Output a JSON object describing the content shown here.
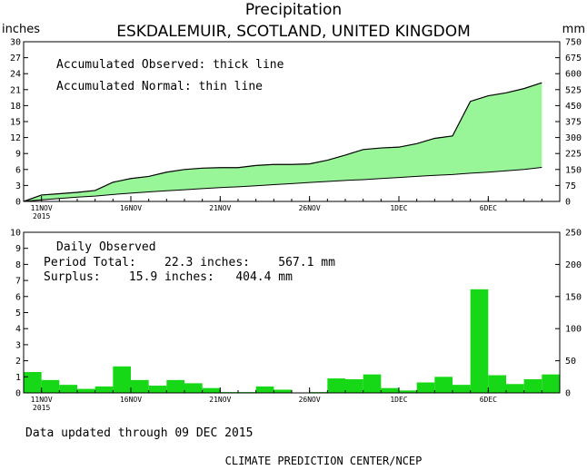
{
  "title": "Precipitation",
  "subtitle": "ESKDALEMUIR, SCOTLAND, UNITED KINGDOM",
  "units": {
    "left": "inches",
    "right": "mm"
  },
  "colors": {
    "fill": "#98f698",
    "bars": "#16d816",
    "line": "#000000"
  },
  "top_panel": {
    "legend_observed": "Accumulated Observed: thick line",
    "legend_normal": "Accumulated Normal: thin line"
  },
  "bottom_panel": {
    "label": "Daily Observed",
    "period_total": "Period Total:    22.3 inches:    567.1 mm",
    "surplus": "Surplus:    15.9 inches:   404.4 mm"
  },
  "x_ticks": [
    {
      "day": 1,
      "label": "11NOV",
      "sub": "2015"
    },
    {
      "day": 6,
      "label": "16NOV",
      "sub": ""
    },
    {
      "day": 11,
      "label": "21NOV",
      "sub": ""
    },
    {
      "day": 16,
      "label": "26NOV",
      "sub": ""
    },
    {
      "day": 21,
      "label": "1DEC",
      "sub": ""
    },
    {
      "day": 26,
      "label": "6DEC",
      "sub": ""
    }
  ],
  "footer": {
    "updated": "Data updated through 09 DEC 2015",
    "credit": "CLIMATE PREDICTION CENTER/NCEP"
  },
  "chart_data": [
    {
      "type": "area",
      "title": "Precipitation",
      "subtitle": "ESKDALEMUIR, SCOTLAND, UNITED KINGDOM",
      "ylabel": "inches",
      "y2label": "mm",
      "ylim": [
        0,
        30
      ],
      "yticks": [
        0,
        3,
        6,
        9,
        12,
        15,
        18,
        21,
        24,
        27,
        30
      ],
      "y2lim": [
        0,
        750
      ],
      "y2ticks": [
        0,
        75,
        150,
        225,
        300,
        375,
        450,
        525,
        600,
        675,
        750
      ],
      "x_days": [
        0,
        1,
        2,
        3,
        4,
        5,
        6,
        7,
        8,
        9,
        10,
        11,
        12,
        13,
        14,
        15,
        16,
        17,
        18,
        19,
        20,
        21,
        22,
        23,
        24,
        25,
        26,
        27,
        28,
        29
      ],
      "series": [
        {
          "name": "Accumulated Observed",
          "values": [
            0.0,
            1.2,
            1.45,
            1.7,
            2.05,
            3.6,
            4.3,
            4.7,
            5.5,
            6.0,
            6.25,
            6.35,
            6.35,
            6.75,
            6.95,
            6.95,
            7.05,
            7.75,
            8.7,
            9.75,
            10.05,
            10.2,
            10.85,
            11.85,
            12.3,
            18.8,
            19.85,
            20.4,
            21.2,
            22.3
          ]
        },
        {
          "name": "Accumulated Normal",
          "values": [
            0.0,
            0.3,
            0.55,
            0.8,
            1.0,
            1.3,
            1.55,
            1.8,
            2.0,
            2.2,
            2.4,
            2.6,
            2.75,
            2.95,
            3.15,
            3.35,
            3.55,
            3.75,
            3.95,
            4.1,
            4.3,
            4.5,
            4.7,
            4.9,
            5.05,
            5.3,
            5.5,
            5.75,
            6.0,
            6.4
          ]
        }
      ]
    },
    {
      "type": "bar",
      "title": "Daily Observed",
      "ylim": [
        0,
        10
      ],
      "yticks": [
        0,
        1,
        2,
        3,
        4,
        5,
        6,
        7,
        8,
        9,
        10
      ],
      "y2lim": [
        0,
        250
      ],
      "y2ticks": [
        0,
        50,
        100,
        150,
        200,
        250
      ],
      "x_days": [
        1,
        2,
        3,
        4,
        5,
        6,
        7,
        8,
        9,
        10,
        11,
        12,
        13,
        14,
        15,
        16,
        17,
        18,
        19,
        20,
        21,
        22,
        23,
        24,
        25,
        26,
        27,
        28,
        29,
        30
      ],
      "values": [
        1.3,
        0.8,
        0.5,
        0.25,
        0.4,
        1.65,
        0.8,
        0.45,
        0.8,
        0.6,
        0.3,
        0.05,
        0.05,
        0.4,
        0.2,
        0.0,
        0.05,
        0.9,
        0.85,
        1.15,
        0.3,
        0.15,
        0.65,
        1.0,
        0.5,
        6.45,
        1.1,
        0.55,
        0.85,
        1.15
      ]
    }
  ]
}
